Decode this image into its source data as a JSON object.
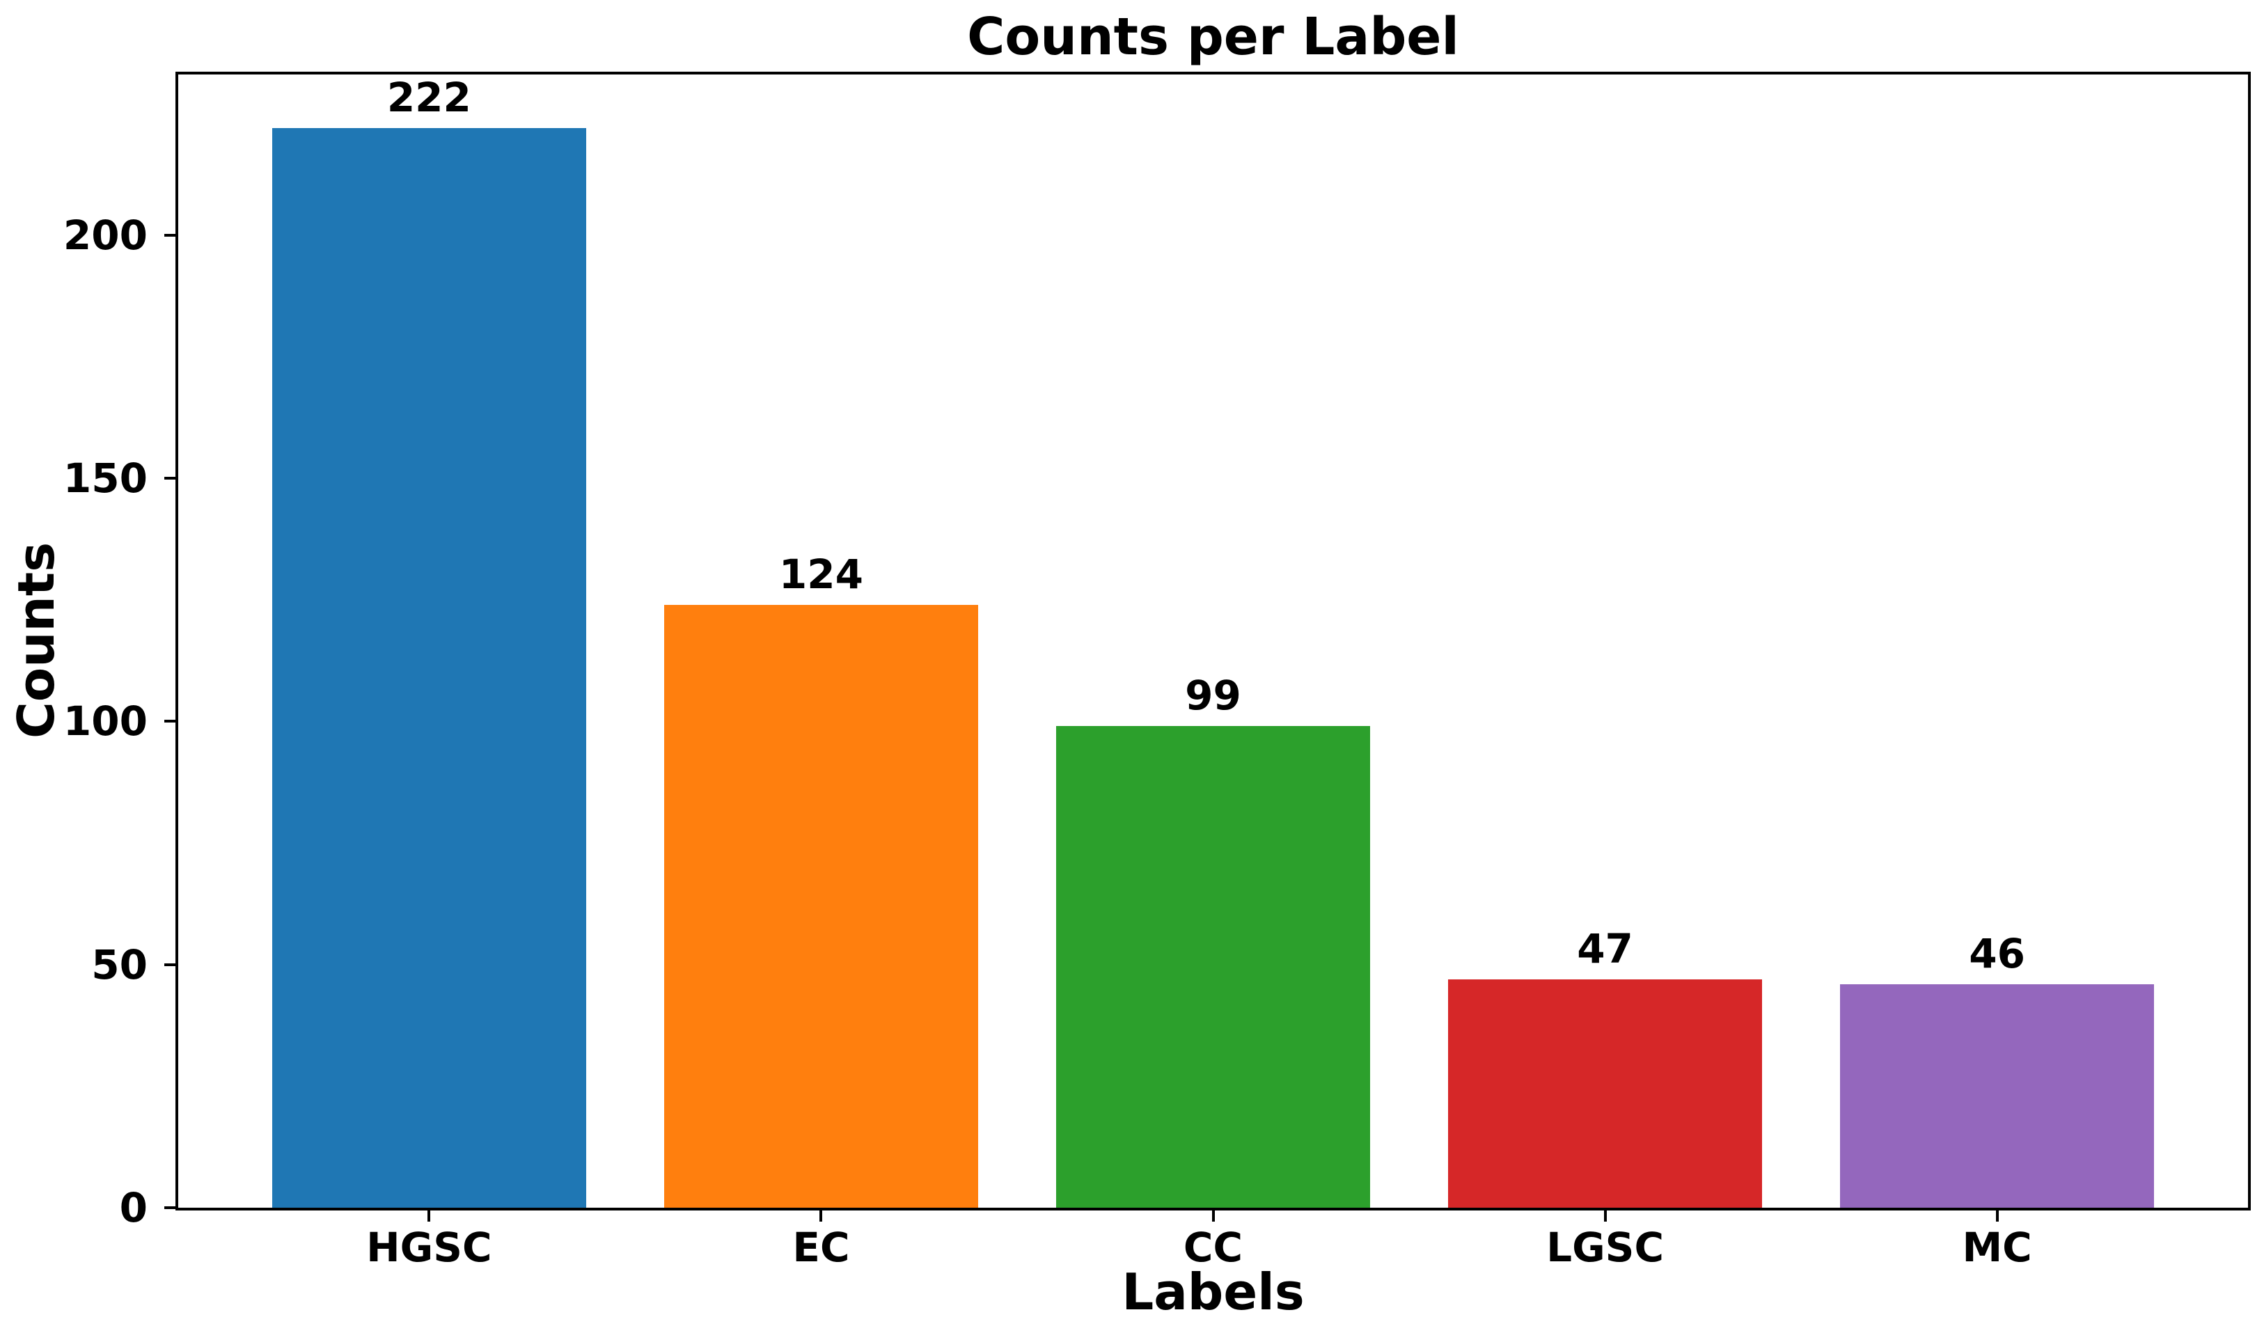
{
  "figure": {
    "background": "#ffffff",
    "text_color": "#000000",
    "axis_color": "#000000"
  },
  "chart_data": {
    "type": "bar",
    "title": "Counts per Label",
    "xlabel": "Labels",
    "ylabel": "Counts",
    "categories": [
      "HGSC",
      "EC",
      "CC",
      "LGSC",
      "MC"
    ],
    "values": [
      222,
      124,
      99,
      47,
      46
    ],
    "bar_colors": [
      "#1f77b4",
      "#ff7f0e",
      "#2ca02c",
      "#d62728",
      "#9467bd"
    ],
    "yticks": [
      0,
      50,
      100,
      150,
      200
    ],
    "ylim": [
      0,
      233
    ],
    "xlim": [
      -0.64,
      4.64
    ],
    "bar_width_fraction": 0.8,
    "grid": false,
    "legend": false,
    "value_labels_shown": true
  }
}
